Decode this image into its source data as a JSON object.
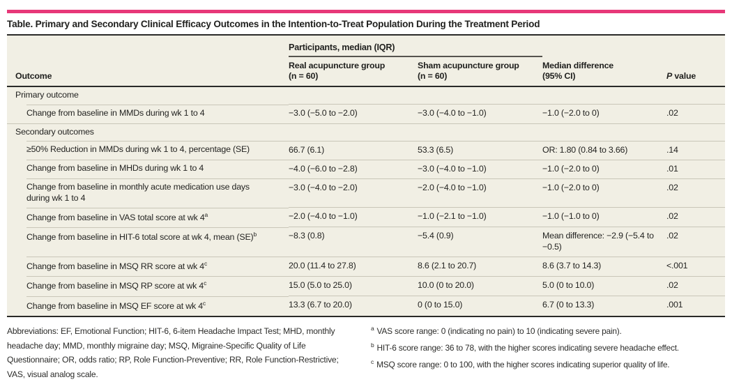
{
  "accent_color": "#e73878",
  "title": "Table. Primary and Secondary Clinical Efficacy Outcomes in the Intention-to-Treat Population During the Treatment Period",
  "table": {
    "spanner": "Participants, median (IQR)",
    "outcome_header": "Outcome",
    "col_real": {
      "line1": "Real acupuncture group",
      "line2": "(n = 60)"
    },
    "col_sham": {
      "line1": "Sham acupuncture group",
      "line2": "(n = 60)"
    },
    "col_diff": {
      "line1": "Median difference",
      "line2": "(95% CI)"
    },
    "col_p": {
      "italic": "P",
      "rest": " value"
    },
    "rows": [
      {
        "type": "section",
        "label": "Primary outcome"
      },
      {
        "type": "data",
        "label": "Change from baseline in MMDs during wk 1 to 4",
        "real": "−3.0 (−5.0 to −2.0)",
        "sham": "−3.0 (−4.0 to −1.0)",
        "diff": "−1.0 (−2.0 to 0)",
        "p": ".02"
      },
      {
        "type": "section",
        "label": "Secondary outcomes"
      },
      {
        "type": "data",
        "label": "≥50% Reduction in MMDs during wk 1 to 4, percentage (SE)",
        "real": "66.7 (6.1)",
        "sham": "53.3 (6.5)",
        "diff": "OR: 1.80 (0.84 to 3.66)",
        "p": ".14"
      },
      {
        "type": "data",
        "label": "Change from baseline in MHDs during wk 1 to 4",
        "real": "−4.0 (−6.0 to −2.8)",
        "sham": "−3.0 (−4.0 to −1.0)",
        "diff": "−1.0 (−2.0 to 0)",
        "p": ".01"
      },
      {
        "type": "data",
        "label": "Change from baseline in monthly acute medication use days during wk 1 to 4",
        "real": "−3.0 (−4.0 to −2.0)",
        "sham": "−2.0 (−4.0 to −1.0)",
        "diff": "−1.0 (−2.0 to 0)",
        "p": ".02"
      },
      {
        "type": "data",
        "label": "Change from baseline in VAS total score at wk 4",
        "sup": "a",
        "real": "−2.0 (−4.0 to −1.0)",
        "sham": "−1.0 (−2.1 to −1.0)",
        "diff": "−1.0 (−1.0 to 0)",
        "p": ".02"
      },
      {
        "type": "data",
        "label": "Change from baseline in HIT-6 total score at wk 4, mean (SE)",
        "sup": "b",
        "real": "−8.3 (0.8)",
        "sham": "−5.4 (0.9)",
        "diff": "Mean difference: −2.9 (−5.4 to −0.5)",
        "p": ".02"
      },
      {
        "type": "data",
        "label": "Change from baseline in MSQ RR score at wk 4",
        "sup": "c",
        "real": "20.0 (11.4 to 27.8)",
        "sham": "8.6 (2.1 to 20.7)",
        "diff": "8.6 (3.7 to 14.3)",
        "p": "<.001"
      },
      {
        "type": "data",
        "label": "Change from baseline in MSQ RP score at wk 4",
        "sup": "c",
        "real": "15.0 (5.0 to 25.0)",
        "sham": "10.0 (0 to 20.0)",
        "diff": "5.0 (0 to 10.0)",
        "p": ".02"
      },
      {
        "type": "data",
        "label": "Change from baseline in MSQ EF score at wk 4",
        "sup": "c",
        "real": "13.3 (6.7 to 20.0)",
        "sham": "0 (0 to 15.0)",
        "diff": "6.7 (0 to 13.3)",
        "p": ".001"
      }
    ]
  },
  "footnotes": {
    "abbreviations": "Abbreviations: EF, Emotional Function; HIT-6, 6-item Headache Impact Test; MHD, monthly headache day; MMD, monthly migraine day; MSQ, Migraine-Specific Quality of Life Questionnaire; OR, odds ratio; RP, Role Function-Preventive; RR, Role Function-Restrictive; VAS, visual analog scale.",
    "lettered": [
      {
        "marker": "a",
        "text": "VAS score range: 0 (indicating no pain) to 10 (indicating severe pain)."
      },
      {
        "marker": "b",
        "text": "HIT-6 score range: 36 to 78, with the higher scores indicating severe headache effect."
      },
      {
        "marker": "c",
        "text": "MSQ score range: 0 to 100, with the higher scores indicating superior quality of life."
      }
    ]
  }
}
